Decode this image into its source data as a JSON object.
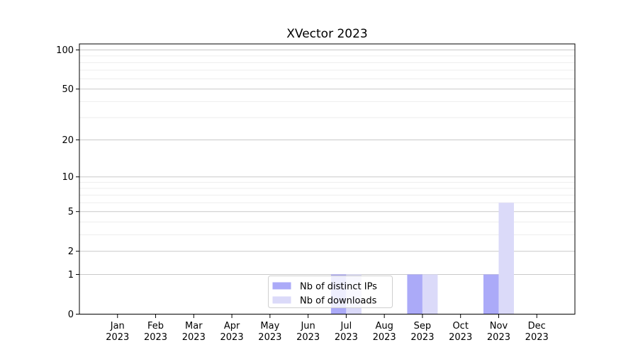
{
  "figure": {
    "title": "XVector 2023"
  },
  "chart_data": {
    "type": "bar",
    "title": "XVector 2023",
    "categories": [
      "Jan",
      "Feb",
      "Mar",
      "Apr",
      "May",
      "Jun",
      "Jul",
      "Aug",
      "Sep",
      "Oct",
      "Nov",
      "Dec"
    ],
    "category_year": "2023",
    "series": [
      {
        "name": "Nb of distinct IPs",
        "color": "#abaaf8",
        "values": [
          0,
          0,
          0,
          0,
          0,
          0,
          1,
          0,
          1,
          0,
          1,
          0
        ]
      },
      {
        "name": "Nb of downloads",
        "color": "#dbdaf9",
        "values": [
          0,
          0,
          0,
          0,
          0,
          0,
          1,
          0,
          1,
          0,
          6,
          0
        ]
      }
    ],
    "yscale": "log1p",
    "ylim": [
      0,
      112
    ],
    "yticks": [
      0,
      1,
      2,
      5,
      10,
      20,
      50,
      100
    ],
    "minor_gridlines": [
      3,
      4,
      6,
      7,
      8,
      9,
      30,
      40,
      60,
      70,
      80,
      90
    ],
    "grid": "horizontal-major-and-minor",
    "legend": {
      "position": "bottom-center"
    },
    "colors": {
      "background": "#ffffff",
      "axis": "#000000",
      "major_grid": "#c9c9c9",
      "minor_grid": "#ededed",
      "legend_border": "#cfcfcf",
      "legend_background": "#ffffff"
    }
  }
}
